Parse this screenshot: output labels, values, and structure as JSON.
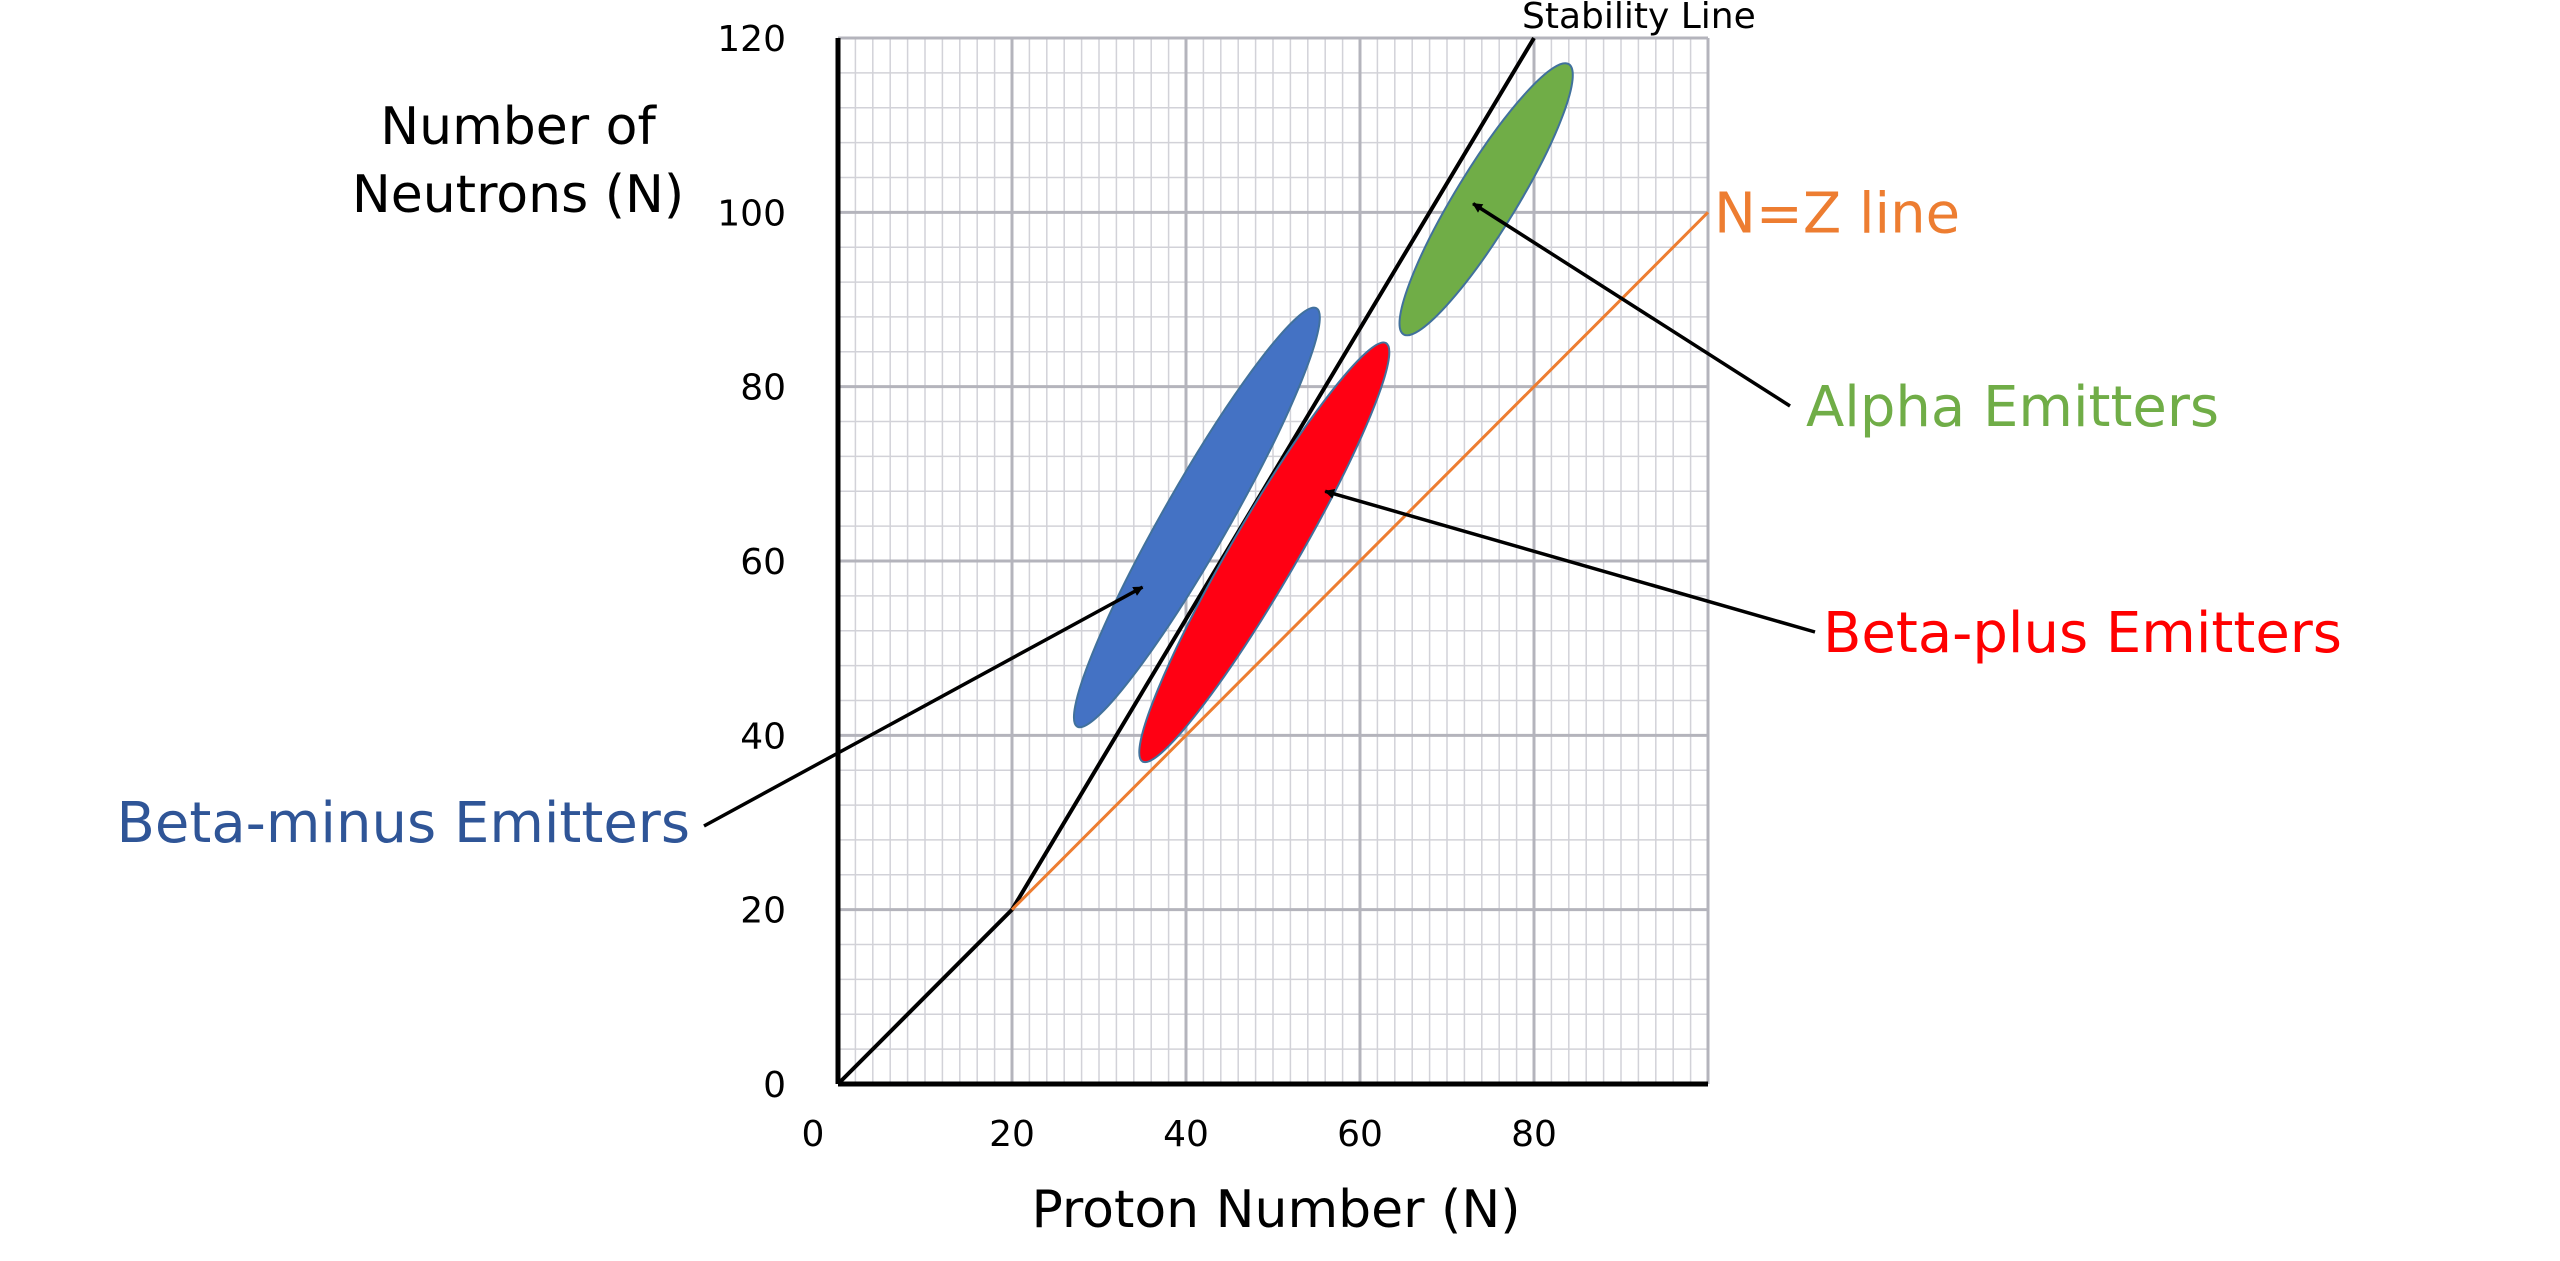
{
  "chart_data": {
    "type": "scatter",
    "title": "",
    "ylabel_lines": [
      "Number of",
      "Neutrons (N)"
    ],
    "xlabel": "Proton Number (N)",
    "xlim": [
      0,
      100
    ],
    "ylim": [
      0,
      120
    ],
    "x_ticks": [
      "0",
      "20",
      "40",
      "60",
      "80"
    ],
    "y_ticks": [
      "0",
      "20",
      "40",
      "60",
      "80",
      "100",
      "120"
    ],
    "grid": true,
    "lines": [
      {
        "label": "Stability Line",
        "color": "#000000",
        "points": [
          [
            0,
            0
          ],
          [
            20,
            20
          ],
          [
            80,
            120
          ]
        ]
      },
      {
        "label": "N=Z line",
        "color": "#ED7D31",
        "points": [
          [
            20,
            20
          ],
          [
            100,
            100
          ]
        ]
      }
    ],
    "regions": [
      {
        "label": "Beta-minus Emitters",
        "color": "#4472C4",
        "text_color": "#2F5597",
        "from": [
          27.5,
          41
        ],
        "to": [
          55,
          89
        ],
        "width": 7.5,
        "arrow_to": [
          35,
          57
        ]
      },
      {
        "label": "Beta-plus Emitters",
        "color": "#FF0013",
        "text_color": "#FF0000",
        "from": [
          35,
          37
        ],
        "to": [
          63,
          85
        ],
        "width": 7.5,
        "arrow_to": [
          56,
          68
        ]
      },
      {
        "label": "Alpha Emitters",
        "color": "#70AD47",
        "text_color": "#70AD47",
        "from": [
          65,
          86
        ],
        "to": [
          84,
          117
        ],
        "width": 7,
        "arrow_to": [
          73,
          101
        ]
      }
    ]
  }
}
